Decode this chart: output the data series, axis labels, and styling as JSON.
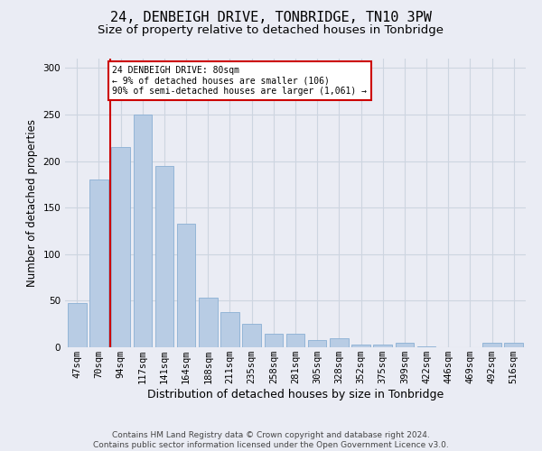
{
  "title1": "24, DENBEIGH DRIVE, TONBRIDGE, TN10 3PW",
  "title2": "Size of property relative to detached houses in Tonbridge",
  "xlabel": "Distribution of detached houses by size in Tonbridge",
  "ylabel": "Number of detached properties",
  "categories": [
    "47sqm",
    "70sqm",
    "94sqm",
    "117sqm",
    "141sqm",
    "164sqm",
    "188sqm",
    "211sqm",
    "235sqm",
    "258sqm",
    "281sqm",
    "305sqm",
    "328sqm",
    "352sqm",
    "375sqm",
    "399sqm",
    "422sqm",
    "446sqm",
    "469sqm",
    "492sqm",
    "516sqm"
  ],
  "values": [
    47,
    180,
    215,
    250,
    195,
    133,
    53,
    38,
    25,
    15,
    15,
    8,
    10,
    3,
    3,
    5,
    1,
    0,
    0,
    5,
    5
  ],
  "bar_color": "#b8cce4",
  "bar_edge_color": "#8aafd4",
  "grid_color": "#cdd5e0",
  "background_color": "#eaecf4",
  "annotation_text": "24 DENBEIGH DRIVE: 80sqm\n← 9% of detached houses are smaller (106)\n90% of semi-detached houses are larger (1,061) →",
  "annotation_box_color": "#ffffff",
  "annotation_box_edge": "#cc0000",
  "vline_x": 1.5,
  "vline_color": "#cc0000",
  "footer": "Contains HM Land Registry data © Crown copyright and database right 2024.\nContains public sector information licensed under the Open Government Licence v3.0.",
  "ylim": [
    0,
    310
  ],
  "yticks": [
    0,
    50,
    100,
    150,
    200,
    250,
    300
  ],
  "title1_fontsize": 11,
  "title2_fontsize": 9.5,
  "xlabel_fontsize": 9,
  "ylabel_fontsize": 8.5,
  "tick_fontsize": 7.5,
  "footer_fontsize": 6.5
}
